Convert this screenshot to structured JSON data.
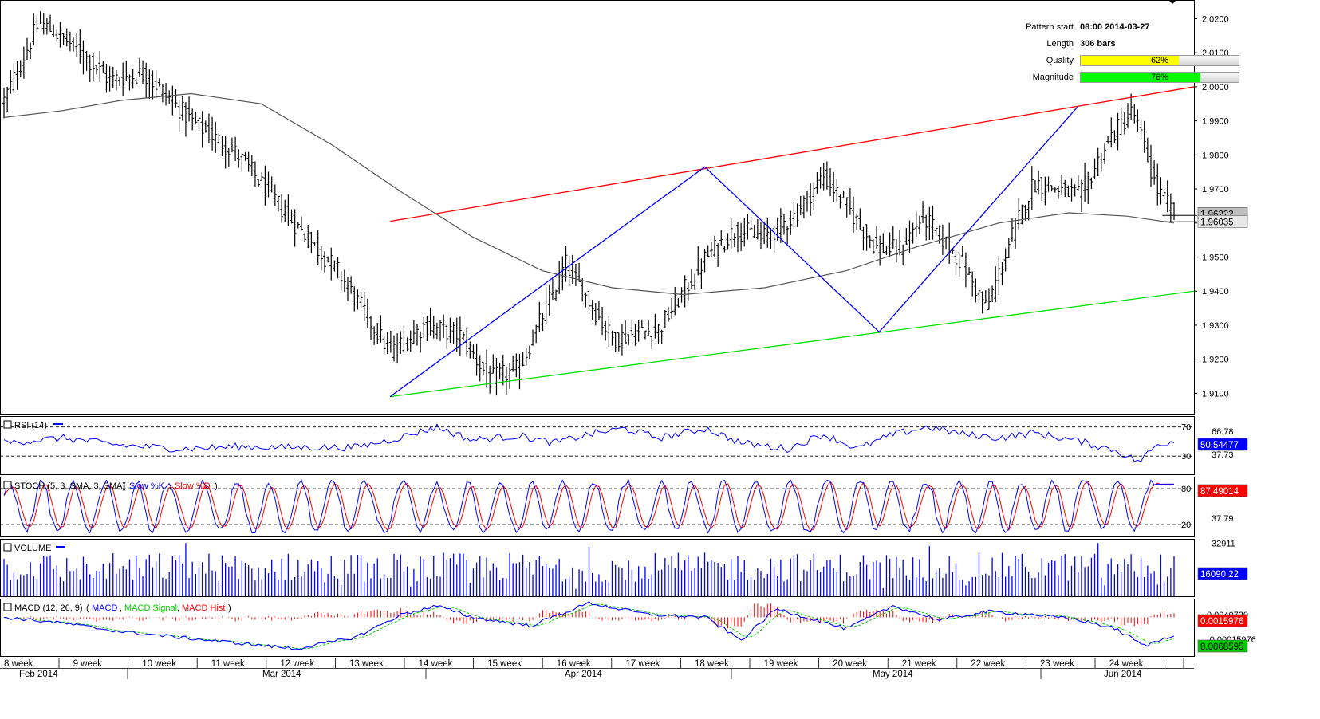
{
  "pattern_info": {
    "pattern_start_label": "Pattern start",
    "pattern_start_value": "08:00 2014-03-27",
    "length_label": "Length",
    "length_value": "306 bars",
    "quality_label": "Quality",
    "quality_value": "62%",
    "quality_fraction": 0.62,
    "quality_color": "#ffff00",
    "magnitude_label": "Magnitude",
    "magnitude_value": "76%",
    "magnitude_fraction": 0.76,
    "magnitude_color": "#00ff00"
  },
  "colors": {
    "price_bar": "#000000",
    "moving_average": "#555555",
    "resistance": "#ff0000",
    "support": "#00dd00",
    "zigzag": "#0000ff",
    "rsi": "#0000ff",
    "stoch_k": "#0000ff",
    "stoch_d": "#ff0000",
    "volume": "#0000ff",
    "macd": "#0000ff",
    "macd_signal": "#00cc00",
    "macd_hist": "#ff0000"
  },
  "chart_data": [
    {
      "type": "ohlc",
      "panel": "price",
      "ylim": [
        1.904,
        2.0255
      ],
      "y_ticks": [
        "2.0200",
        "2.0100",
        "2.0000",
        "1.9900",
        "1.9800",
        "1.9700",
        "1.9600",
        "1.9500",
        "1.9400",
        "1.9300",
        "1.9200",
        "1.9100"
      ],
      "current_price_labels": [
        "1.96222",
        "1.96035"
      ],
      "close_path": [
        [
          0,
          1.996
        ],
        [
          0.03,
          2.019
        ],
        [
          0.06,
          2.012
        ],
        [
          0.09,
          2.002
        ],
        [
          0.12,
          2.004
        ],
        [
          0.16,
          1.99
        ],
        [
          0.2,
          1.98
        ],
        [
          0.24,
          1.963
        ],
        [
          0.285,
          1.946
        ],
        [
          0.33,
          1.922
        ],
        [
          0.36,
          1.93
        ],
        [
          0.39,
          1.927
        ],
        [
          0.415,
          1.914
        ],
        [
          0.44,
          1.917
        ],
        [
          0.48,
          1.948
        ],
        [
          0.52,
          1.926
        ],
        [
          0.56,
          1.929
        ],
        [
          0.6,
          1.95
        ],
        [
          0.625,
          1.958
        ],
        [
          0.65,
          1.956
        ],
        [
          0.675,
          1.962
        ],
        [
          0.7,
          1.974
        ],
        [
          0.72,
          1.965
        ],
        [
          0.745,
          1.953
        ],
        [
          0.765,
          1.952
        ],
        [
          0.785,
          1.962
        ],
        [
          0.815,
          1.95
        ],
        [
          0.84,
          1.935
        ],
        [
          0.86,
          1.955
        ],
        [
          0.88,
          1.972
        ],
        [
          0.92,
          1.968
        ],
        [
          0.945,
          1.985
        ],
        [
          0.965,
          1.993
        ],
        [
          0.985,
          1.97
        ],
        [
          1.0,
          1.963
        ]
      ],
      "moving_average": [
        [
          0,
          1.991
        ],
        [
          0.05,
          1.993
        ],
        [
          0.1,
          1.996
        ],
        [
          0.16,
          1.998
        ],
        [
          0.22,
          1.995
        ],
        [
          0.28,
          1.983
        ],
        [
          0.34,
          1.969
        ],
        [
          0.4,
          1.956
        ],
        [
          0.46,
          1.946
        ],
        [
          0.52,
          1.941
        ],
        [
          0.58,
          1.939
        ],
        [
          0.65,
          1.941
        ],
        [
          0.72,
          1.946
        ],
        [
          0.78,
          1.953
        ],
        [
          0.85,
          1.96
        ],
        [
          0.91,
          1.963
        ],
        [
          0.96,
          1.962
        ],
        [
          1.0,
          1.96
        ]
      ],
      "resistance_line": [
        [
          0.33,
          1.9605
        ],
        [
          1.0,
          2.0
        ]
      ],
      "support_line": [
        [
          0.33,
          1.909
        ],
        [
          1.0,
          1.94
        ]
      ],
      "zigzag": [
        [
          0.33,
          1.909
        ],
        [
          0.599,
          1.9765
        ],
        [
          0.748,
          1.928
        ],
        [
          0.918,
          1.9943
        ]
      ]
    },
    {
      "type": "line",
      "panel": "rsi",
      "label": "RSI (14)",
      "ylim": [
        5,
        85
      ],
      "y_ticks": [
        "70",
        "30"
      ],
      "levels": [
        "66.78",
        "37.73"
      ],
      "current_value": "50.54477",
      "path": [
        [
          0,
          48
        ],
        [
          0.05,
          55
        ],
        [
          0.1,
          45
        ],
        [
          0.15,
          40
        ],
        [
          0.2,
          43
        ],
        [
          0.24,
          42
        ],
        [
          0.3,
          42
        ],
        [
          0.33,
          52
        ],
        [
          0.37,
          70
        ],
        [
          0.4,
          52
        ],
        [
          0.44,
          58
        ],
        [
          0.47,
          48
        ],
        [
          0.5,
          60
        ],
        [
          0.53,
          68
        ],
        [
          0.56,
          55
        ],
        [
          0.6,
          68
        ],
        [
          0.63,
          48
        ],
        [
          0.67,
          40
        ],
        [
          0.7,
          60
        ],
        [
          0.73,
          40
        ],
        [
          0.76,
          60
        ],
        [
          0.79,
          70
        ],
        [
          0.82,
          60
        ],
        [
          0.85,
          55
        ],
        [
          0.88,
          62
        ],
        [
          0.92,
          50
        ],
        [
          0.95,
          38
        ],
        [
          0.97,
          22
        ],
        [
          0.985,
          45
        ],
        [
          1.0,
          51
        ]
      ]
    },
    {
      "type": "line",
      "panel": "stoch",
      "label": "STOCH (5, 3, SMA, 3, SMA)",
      "legend": [
        "Slow %K",
        "Slow %D"
      ],
      "ylim": [
        0,
        100
      ],
      "y_ticks": [
        "80",
        "20"
      ],
      "levels": [
        "37.79"
      ],
      "current_value": "87.49014",
      "k_last": 87.5,
      "d_last": 80
    },
    {
      "type": "bar",
      "panel": "volume",
      "label": "VOLUME",
      "ylim": [
        0,
        35500
      ],
      "y_ticks": [
        "32911"
      ],
      "current_value": "16090.22",
      "typical_range": [
        9000,
        27000
      ],
      "spikes": [
        [
          0.155,
          32911
        ],
        [
          0.5,
          30500
        ],
        [
          0.79,
          31000
        ],
        [
          0.935,
          32911
        ]
      ]
    },
    {
      "type": "line",
      "panel": "macd",
      "label": "MACD (12, 26, 9)",
      "legend": [
        "MACD",
        "MACD Signal",
        "MACD Hist"
      ],
      "ylim": [
        -0.0135,
        0.0065
      ],
      "y_ticks": [
        "0.0040720",
        "0.0015976",
        "-0.00015976",
        "0.0068595"
      ],
      "current_value": "0.0015976",
      "signal_value": "0.0068595",
      "hist_last": 0.0015976,
      "path": [
        [
          0,
          0.0
        ],
        [
          0.05,
          -0.002
        ],
        [
          0.1,
          -0.005
        ],
        [
          0.15,
          -0.007
        ],
        [
          0.2,
          -0.009
        ],
        [
          0.25,
          -0.011
        ],
        [
          0.3,
          -0.007
        ],
        [
          0.34,
          0.001
        ],
        [
          0.37,
          0.004
        ],
        [
          0.4,
          0.0
        ],
        [
          0.45,
          -0.003
        ],
        [
          0.5,
          0.005
        ],
        [
          0.55,
          0.001
        ],
        [
          0.6,
          0.0
        ],
        [
          0.63,
          -0.008
        ],
        [
          0.66,
          0.003
        ],
        [
          0.72,
          -0.004
        ],
        [
          0.76,
          0.004
        ],
        [
          0.8,
          -0.001
        ],
        [
          0.84,
          0.002
        ],
        [
          0.88,
          0.001
        ],
        [
          0.92,
          -0.001
        ],
        [
          0.95,
          -0.004
        ],
        [
          0.975,
          -0.01
        ],
        [
          1.0,
          -0.006
        ]
      ]
    }
  ],
  "x_axis": {
    "weeks": [
      "8 week",
      "9 week",
      "10 week",
      "11 week",
      "12 week",
      "13 week",
      "14 week",
      "15 week",
      "16 week",
      "17 week",
      "18 week",
      "19 week",
      "20 week",
      "21 week",
      "22 week",
      "23 week",
      "24 week"
    ],
    "months": [
      "Feb 2014",
      "Mar 2014",
      "Apr 2014",
      "May 2014",
      "Jun 2014"
    ]
  }
}
